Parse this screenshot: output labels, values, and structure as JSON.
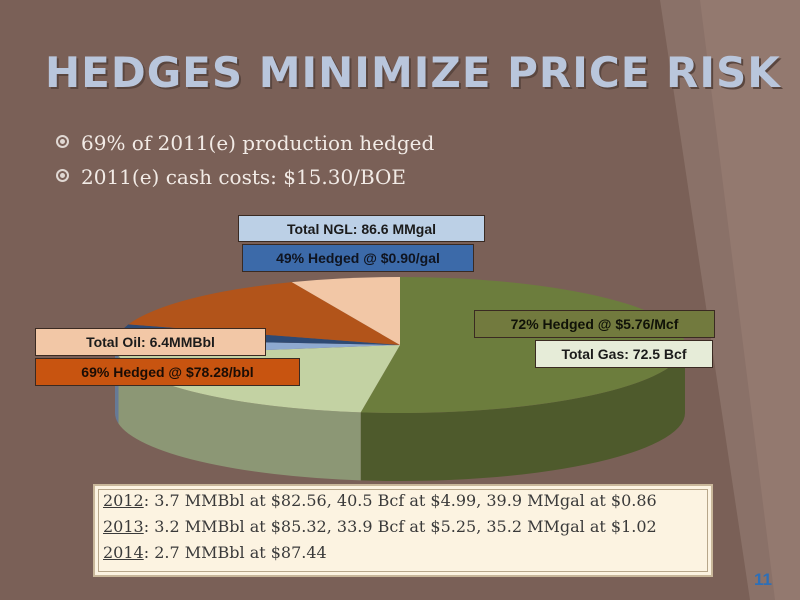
{
  "title": "Hedges Minimize Price Risk",
  "bullets": [
    "69% of 2011(e) production hedged",
    "2011(e) cash costs: $15.30/BOE"
  ],
  "chart_data": {
    "type": "pie",
    "title": "",
    "slices": [
      {
        "name": "Gas hedged",
        "value": 52.2,
        "color": "#6c7d3d"
      },
      {
        "name": "Gas unhedged",
        "value": 20.3,
        "color": "#c3d2a3"
      },
      {
        "name": "NGL unhedged",
        "value": 3.8,
        "color": "#8ea9d0"
      },
      {
        "name": "NGL hedged",
        "value": 3.6,
        "color": "#2e4a74"
      },
      {
        "name": "Oil hedged",
        "value": 13.9,
        "color": "#b2541a"
      },
      {
        "name": "Oil unhedged",
        "value": 6.2,
        "color": "#f2c7a6"
      }
    ],
    "labels": {
      "ngl_total": "Total NGL: 86.6 MMgal",
      "ngl_hedged": "49% Hedged @ $0.90/gal",
      "gas_hedged": "72% Hedged @ $5.76/Mcf",
      "gas_total": "Total Gas:  72.5 Bcf",
      "oil_total": "Total Oil:  6.4MMBbl",
      "oil_hedged": "69% Hedged @ $78.28/bbl"
    }
  },
  "future_hedges": [
    {
      "year": "2012",
      "text": ": 3.7 MMBbl at $82.56, 40.5 Bcf at $4.99, 39.9 MMgal at $0.86"
    },
    {
      "year": "2013",
      "text": ": 3.2 MMBbl at $85.32, 33.9 Bcf at $5.25, 35.2 MMgal at $1.02"
    },
    {
      "year": "2014",
      "text": ": 2.7 MMBbl at $87.44"
    }
  ],
  "page_number": "11"
}
